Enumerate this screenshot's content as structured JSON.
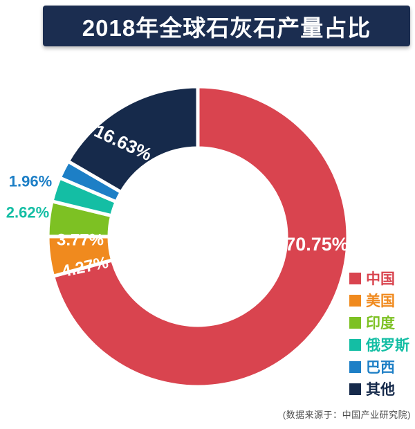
{
  "colors": {
    "page_bg": "#ffffff",
    "banner_bg": "#1b2d50",
    "banner_text": "#ffffff",
    "slice_border": "#ffffff",
    "inside_label_text": "#ffffff",
    "source_text": "#4a4a4a"
  },
  "chart_data": {
    "type": "pie",
    "subtype": "donut",
    "title": "2018年全球石灰石产量占比",
    "unit": "%",
    "start_angle": "top",
    "direction": "clockwise",
    "legend_position": "right",
    "slices": [
      {
        "name": "中国",
        "value": 70.75,
        "label": "70.75%",
        "color": "#d9444f"
      },
      {
        "name": "美国",
        "value": 4.27,
        "label": "4.27%",
        "color": "#f08a1e"
      },
      {
        "name": "印度",
        "value": 3.77,
        "label": "3.77%",
        "color": "#7dc123"
      },
      {
        "name": "俄罗斯",
        "value": 2.62,
        "label": "2.62%",
        "color": "#14bea4"
      },
      {
        "name": "巴西",
        "value": 1.96,
        "label": "1.96%",
        "color": "#1d7fc6"
      },
      {
        "name": "其他",
        "value": 16.63,
        "label": "16.63%",
        "color": "#162a4b"
      }
    ],
    "source_note": "(数据来源于：中国产业研究院)"
  }
}
